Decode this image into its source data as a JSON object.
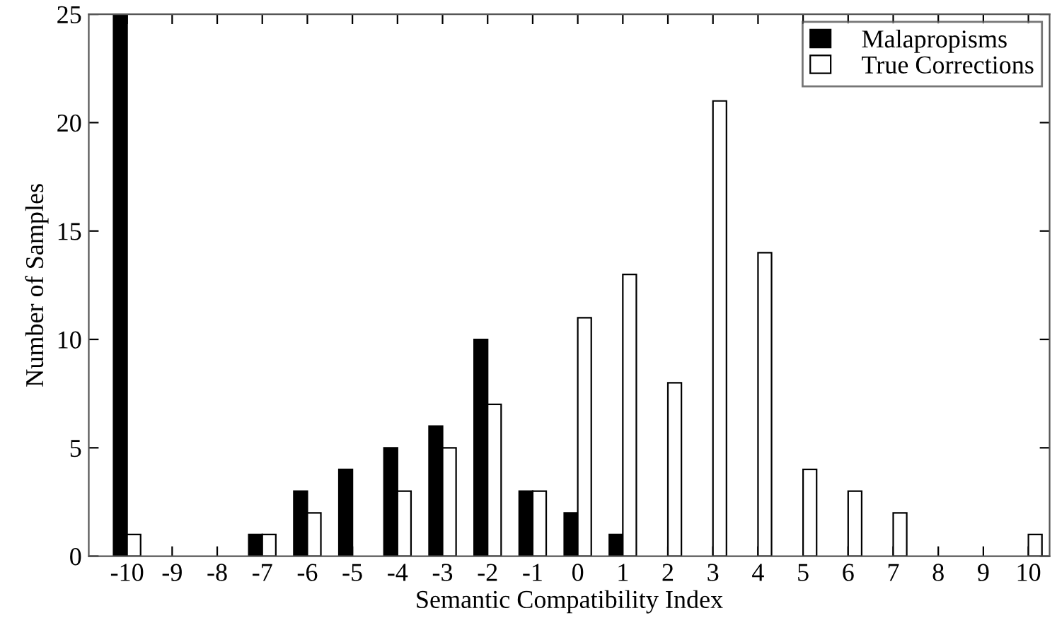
{
  "chart_data": {
    "type": "bar",
    "xlabel": "Semantic Compatibility Index",
    "ylabel": "Number of Samples",
    "categories": [
      "-10",
      "-9",
      "-8",
      "-7",
      "-6",
      "-5",
      "-4",
      "-3",
      "-2",
      "-1",
      "0",
      "1",
      "2",
      "3",
      "4",
      "5",
      "6",
      "7",
      "8",
      "9",
      "10"
    ],
    "series": [
      {
        "name": "Malapropisms",
        "color": "#000000",
        "values": [
          25,
          0,
          0,
          1,
          3,
          4,
          5,
          6,
          10,
          3,
          2,
          1,
          0,
          0,
          0,
          0,
          0,
          0,
          0,
          0,
          0
        ]
      },
      {
        "name": "True Corrections",
        "color": "#ffffff",
        "values": [
          1,
          0,
          0,
          1,
          2,
          0,
          3,
          5,
          7,
          3,
          11,
          13,
          8,
          21,
          14,
          4,
          3,
          2,
          0,
          0,
          1
        ]
      }
    ],
    "ylim": [
      0,
      25
    ],
    "yticks": [
      0,
      5,
      10,
      15,
      20,
      25
    ],
    "grid": false,
    "legend": "top right"
  }
}
